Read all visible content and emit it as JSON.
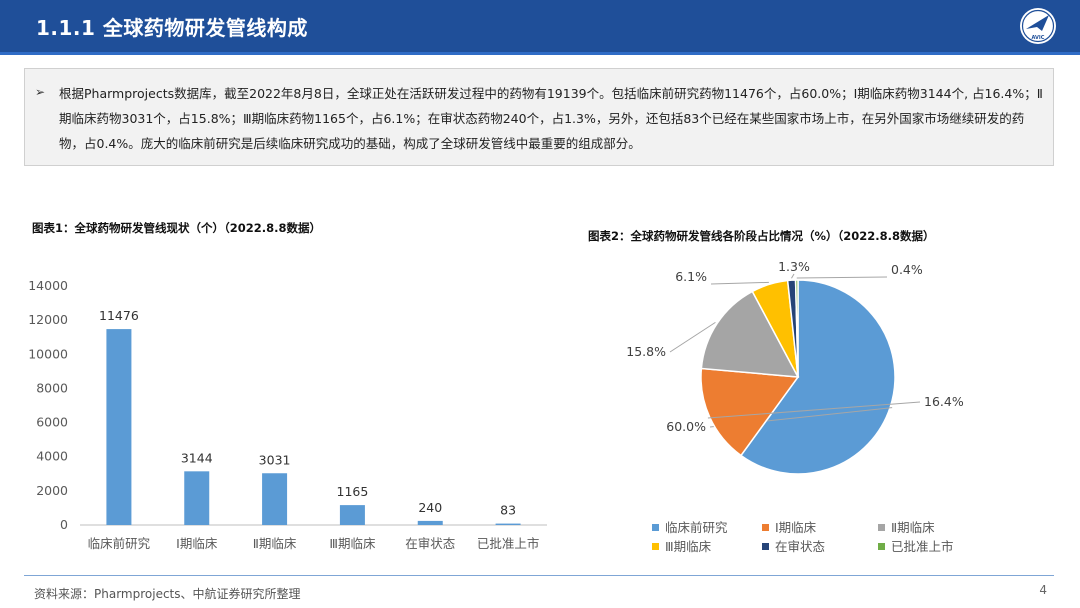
{
  "header": {
    "title": "1.1.1 全球药物研发管线构成",
    "logo_text": "AVIC"
  },
  "summary": {
    "bullet": "➢",
    "text": "根据Pharmprojects数据库，截至2022年8月8日，全球正处在活跃研发过程中的药物有19139个。包括临床前研究药物11476个，占60.0%；Ⅰ期临床药物3144个, 占16.4%；Ⅱ期临床药物3031个，占15.8%；Ⅲ期临床药物1165个，占6.1%；在审状态药物240个，占1.3%，另外，还包括83个已经在某些国家市场上市，在另外国家市场继续研发的药物，占0.4%。庞大的临床前研究是后续临床研究成功的基础，构成了全球研发管线中最重要的组成部分。"
  },
  "chart_data": [
    {
      "type": "bar",
      "title": "图表1：全球药物研发管线现状（个）（2022.8.8数据）",
      "categories": [
        "临床前研究",
        "Ⅰ期临床",
        "Ⅱ期临床",
        "Ⅲ期临床",
        "在审状态",
        "已批准上市"
      ],
      "values": [
        11476,
        3144,
        3031,
        1165,
        240,
        83
      ],
      "data_labels": [
        "11476",
        "3144",
        "3031",
        "1165",
        "240",
        "83"
      ],
      "ylim": [
        0,
        14000
      ],
      "yticks": [
        0,
        2000,
        4000,
        6000,
        8000,
        10000,
        12000,
        14000
      ],
      "ytick_labels": [
        "0",
        "2000",
        "4000",
        "6000",
        "8000",
        "10000",
        "12000",
        "14000"
      ],
      "color": "#5b9bd5",
      "grid": false
    },
    {
      "type": "pie",
      "title": "图表2：全球药物研发管线各阶段占比情况（%）（2022.8.8数据）",
      "labels": [
        "临床前研究",
        "Ⅰ期临床",
        "Ⅱ期临床",
        "Ⅲ期临床",
        "在审状态",
        "已批准上市"
      ],
      "values": [
        60.0,
        16.4,
        15.8,
        6.1,
        1.3,
        0.4
      ],
      "data_labels": [
        "60.0%",
        "16.4%",
        "15.8%",
        "6.1%",
        "1.3%",
        "0.4%"
      ],
      "colors": [
        "#5b9bd5",
        "#ed7d31",
        "#a5a5a5",
        "#ffc000",
        "#264478",
        "#70ad47"
      ],
      "legend_position": "bottom"
    }
  ],
  "footer": {
    "source": "资料来源：Pharmprojects、中航证券研究所整理",
    "page": "4"
  }
}
